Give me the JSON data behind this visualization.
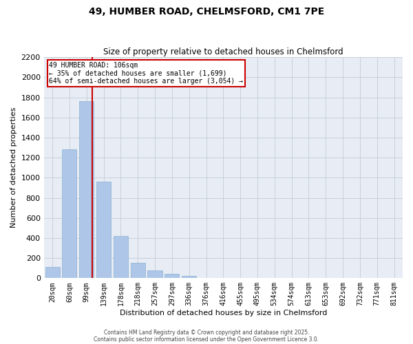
{
  "title1": "49, HUMBER ROAD, CHELMSFORD, CM1 7PE",
  "title2": "Size of property relative to detached houses in Chelmsford",
  "xlabel": "Distribution of detached houses by size in Chelmsford",
  "ylabel": "Number of detached properties",
  "bar_labels": [
    "20sqm",
    "60sqm",
    "99sqm",
    "139sqm",
    "178sqm",
    "218sqm",
    "257sqm",
    "297sqm",
    "336sqm",
    "376sqm",
    "416sqm",
    "455sqm",
    "495sqm",
    "534sqm",
    "574sqm",
    "613sqm",
    "653sqm",
    "692sqm",
    "732sqm",
    "771sqm",
    "811sqm"
  ],
  "bar_values": [
    110,
    1280,
    1760,
    960,
    420,
    150,
    80,
    40,
    20,
    0,
    0,
    0,
    0,
    0,
    0,
    0,
    0,
    0,
    0,
    0,
    0
  ],
  "bar_color": "#aec6e8",
  "bar_edge_color": "#8ab0d0",
  "vline_x": 2.35,
  "vline_color": "#cc0000",
  "ylim": [
    0,
    2200
  ],
  "yticks": [
    0,
    200,
    400,
    600,
    800,
    1000,
    1200,
    1400,
    1600,
    1800,
    2000,
    2200
  ],
  "annotation_title": "49 HUMBER ROAD: 106sqm",
  "annotation_line1": "← 35% of detached houses are smaller (1,699)",
  "annotation_line2": "64% of semi-detached houses are larger (3,054) →",
  "annotation_box_color": "#cc0000",
  "grid_color": "#c8d0dc",
  "bg_color": "#e8edf5",
  "footer1": "Contains HM Land Registry data © Crown copyright and database right 2025.",
  "footer2": "Contains public sector information licensed under the Open Government Licence 3.0."
}
